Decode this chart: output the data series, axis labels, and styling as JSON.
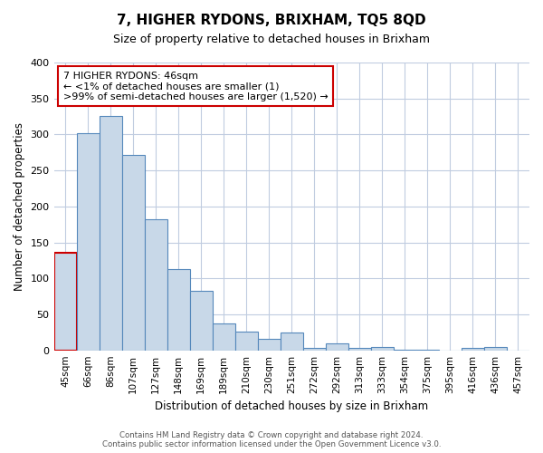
{
  "title": "7, HIGHER RYDONS, BRIXHAM, TQ5 8QD",
  "subtitle": "Size of property relative to detached houses in Brixham",
  "xlabel": "Distribution of detached houses by size in Brixham",
  "ylabel": "Number of detached properties",
  "bar_labels": [
    "45sqm",
    "66sqm",
    "86sqm",
    "107sqm",
    "127sqm",
    "148sqm",
    "169sqm",
    "189sqm",
    "210sqm",
    "230sqm",
    "251sqm",
    "272sqm",
    "292sqm",
    "313sqm",
    "333sqm",
    "354sqm",
    "375sqm",
    "395sqm",
    "416sqm",
    "436sqm",
    "457sqm"
  ],
  "bar_values": [
    135,
    302,
    326,
    271,
    182,
    113,
    83,
    37,
    26,
    16,
    25,
    4,
    10,
    4,
    5,
    1,
    1,
    0,
    3,
    5,
    0
  ],
  "highlight_bar_index": 0,
  "bar_color": "#c8d8e8",
  "bar_edge_color": "#5588bb",
  "highlight_edge_color": "#cc0000",
  "annotation_title": "7 HIGHER RYDONS: 46sqm",
  "annotation_line1": "← <1% of detached houses are smaller (1)",
  "annotation_line2": ">99% of semi-detached houses are larger (1,520) →",
  "annotation_border_color": "#cc0000",
  "ylim": [
    0,
    400
  ],
  "yticks": [
    0,
    50,
    100,
    150,
    200,
    250,
    300,
    350,
    400
  ],
  "footnote1": "Contains HM Land Registry data © Crown copyright and database right 2024.",
  "footnote2": "Contains public sector information licensed under the Open Government Licence v3.0.",
  "background_color": "#ffffff",
  "grid_color": "#c0cce0"
}
